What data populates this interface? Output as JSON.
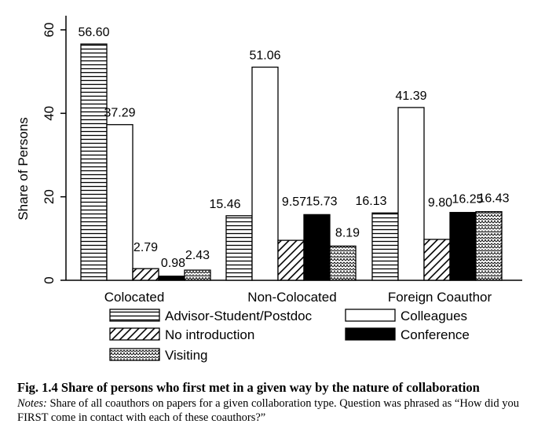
{
  "chart_data": {
    "type": "bar",
    "ylabel": "Share of Persons",
    "ylim": [
      0,
      60
    ],
    "yticks": [
      "0",
      "20",
      "40",
      "60"
    ],
    "categories": [
      "Colocated",
      "Non-Colocated",
      "Foreign Coauthor"
    ],
    "series": [
      {
        "name": "Advisor-Student/Postdoc",
        "pattern": "horizontal-lines",
        "values": [
          56.6,
          15.46,
          16.13
        ],
        "labels": [
          "56.60",
          "15.46",
          "16.13"
        ]
      },
      {
        "name": "Colleagues",
        "pattern": "white",
        "values": [
          37.29,
          51.06,
          41.39
        ],
        "labels": [
          "37.29",
          "51.06",
          "41.39"
        ]
      },
      {
        "name": "No introduction",
        "pattern": "diagonal-lines",
        "values": [
          2.79,
          9.57,
          9.8
        ],
        "labels": [
          "2.79",
          "9.57",
          "9.80"
        ]
      },
      {
        "name": "Conference",
        "pattern": "black",
        "values": [
          0.98,
          15.73,
          16.25
        ],
        "labels": [
          "0.98",
          "15.73",
          "16.25"
        ]
      },
      {
        "name": "Visiting",
        "pattern": "crosshatch",
        "values": [
          2.43,
          8.19,
          16.43
        ],
        "labels": [
          "2.43",
          "8.19",
          "16.43"
        ]
      }
    ],
    "legend_position": "bottom",
    "colors": {
      "axis": "#000000",
      "fill_dark": "#000000",
      "fill_light": "#ffffff"
    }
  },
  "caption": {
    "title": "Fig. 1.4 Share of persons who first met in a given way by the nature of collaboration",
    "notes_label": "Notes:",
    "notes_text": " Share of all coauthors on papers for a given collaboration type. Question was phrased as “How did you FIRST come in contact with each of these coauthors?”"
  }
}
